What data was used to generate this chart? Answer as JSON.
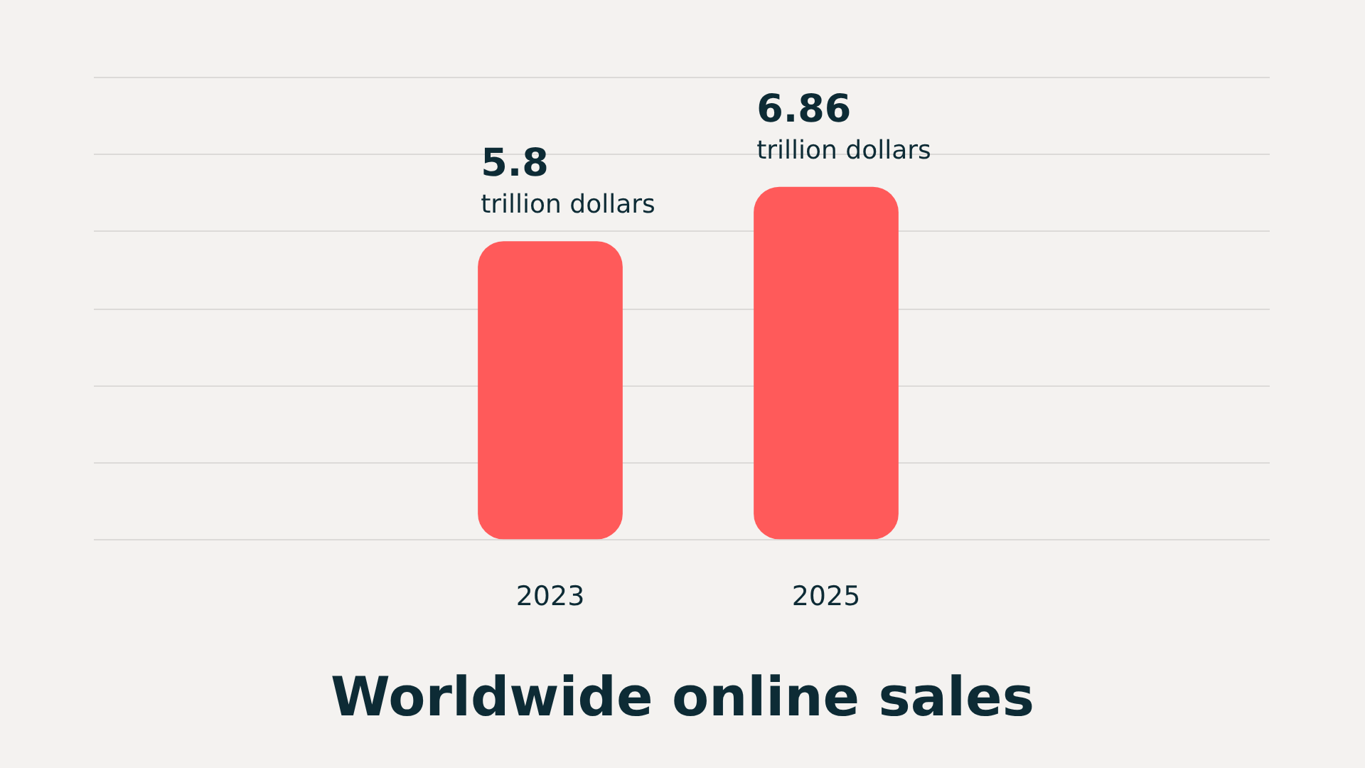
{
  "chart_data": {
    "type": "bar",
    "title": "Worldwide online sales",
    "categories": [
      "2023",
      "2025"
    ],
    "values": [
      5.8,
      6.86
    ],
    "value_labels": [
      "5.8 trillion dollars",
      "6.86 trillion dollars"
    ],
    "color": "#ff5a5a",
    "ylim": [
      0,
      9
    ],
    "yticks": [
      {
        "value": 0,
        "label": null
      },
      {
        "value": 1.5,
        "label": null
      },
      {
        "value": 3,
        "label": null
      },
      {
        "value": 4.5,
        "label": null
      },
      {
        "value": 6,
        "label": null
      },
      {
        "value": 7.5,
        "label": null
      },
      {
        "value": 9,
        "label": null
      }
    ],
    "grid": "y",
    "legend": false,
    "tick_labels": "x"
  }
}
